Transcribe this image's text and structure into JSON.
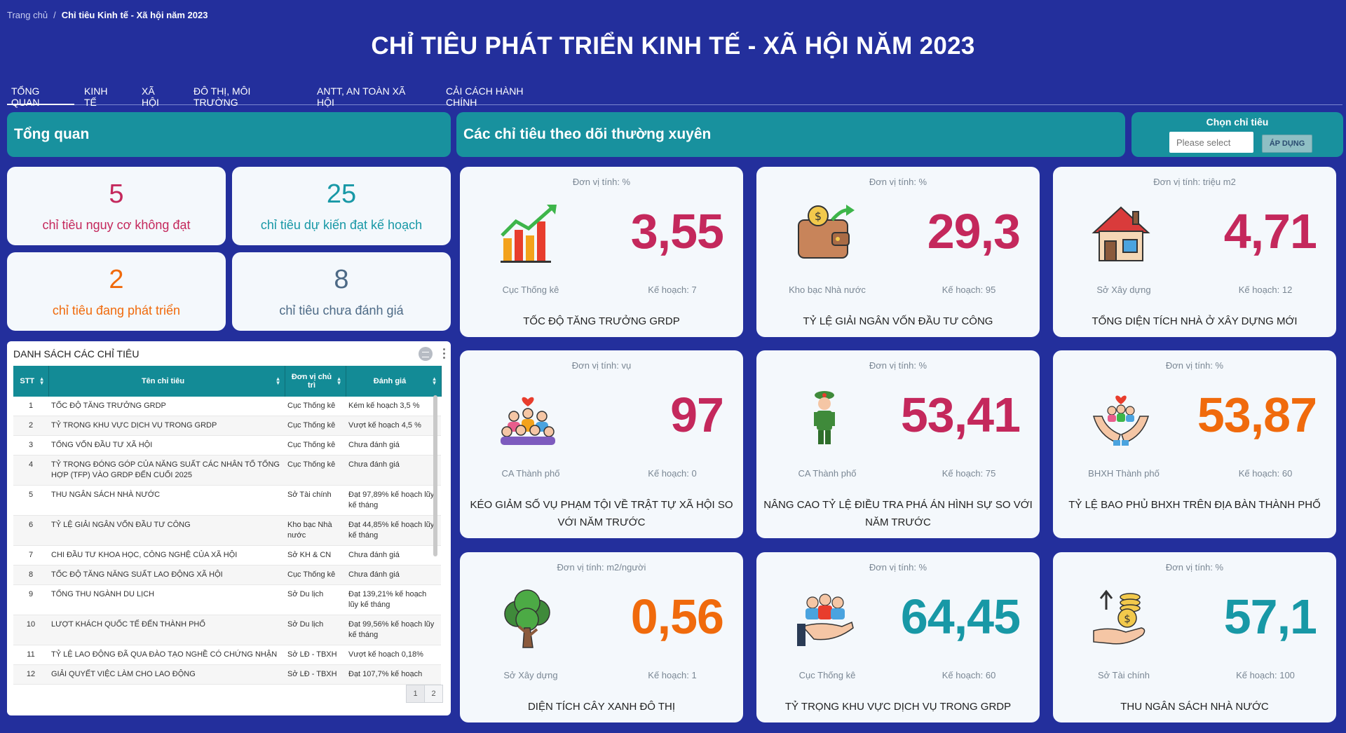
{
  "breadcrumb": {
    "home": "Trang chủ",
    "separator": "/",
    "current": "Chỉ tiêu Kinh tế - Xã hội năm 2023"
  },
  "page_title": "CHỈ TIÊU PHÁT TRIỂN KINH TẾ - XÃ HỘI NĂM 2023",
  "tabs": [
    {
      "label": "TỔNG QUAN"
    },
    {
      "label": "KINH TẾ"
    },
    {
      "label": "XÃ HỘI"
    },
    {
      "label": "ĐÔ THỊ, MÔI TRƯỜNG"
    },
    {
      "label": "ANTT, AN TOÀN XÃ HỘI"
    },
    {
      "label": "CẢI CÁCH HÀNH CHÍNH"
    }
  ],
  "overview": {
    "title": "Tổng quan"
  },
  "tracking": {
    "title": "Các chỉ tiêu theo dõi thường xuyên"
  },
  "picker": {
    "title": "Chọn chỉ tiêu",
    "placeholder": "Please select",
    "apply_label": "ÁP DỤNG"
  },
  "stats": [
    {
      "value": "5",
      "label": "chỉ tiêu nguy cơ không đạt",
      "color": "#c4285c"
    },
    {
      "value": "25",
      "label": "chỉ tiêu dự kiến đạt kế hoạch",
      "color": "#1898a6"
    },
    {
      "value": "2",
      "label": "chỉ tiêu đang phát triển",
      "color": "#f06a0c"
    },
    {
      "value": "8",
      "label": "chỉ tiêu chưa đánh giá",
      "color": "#4d6a86"
    }
  ],
  "list": {
    "title": "DANH SÁCH CÁC CHỈ TIÊU",
    "columns": [
      "STT",
      "Tên chỉ tiêu",
      "Đơn vị chủ trì",
      "Đánh giá"
    ],
    "rows": [
      {
        "stt": "1",
        "name": "TỐC ĐỘ TĂNG TRƯỞNG GRDP",
        "unit": "Cục Thống kê",
        "eval": "Kém kế hoạch 3,5 %"
      },
      {
        "stt": "2",
        "name": "TỶ TRỌNG KHU VỰC DỊCH VỤ TRONG GRDP",
        "unit": "Cục Thống kê",
        "eval": "Vượt kế hoạch 4,5 %"
      },
      {
        "stt": "3",
        "name": "TỔNG VỐN ĐẦU TƯ XÃ HỘI",
        "unit": "Cục Thống kê",
        "eval": "Chưa đánh giá"
      },
      {
        "stt": "4",
        "name": "TỶ TRỌNG ĐÓNG GÓP CỦA NĂNG SUẤT CÁC NHÂN TỐ TỔNG HỢP (TFP) VÀO GRDP ĐẾN CUỐI 2025",
        "unit": "Cục Thống kê",
        "eval": "Chưa đánh giá"
      },
      {
        "stt": "5",
        "name": "THU NGÂN SÁCH NHÀ NƯỚC",
        "unit": "Sở Tài chính",
        "eval": "Đạt 97,89% kế hoạch lũy kế tháng"
      },
      {
        "stt": "6",
        "name": "TỶ LỆ GIẢI NGÂN VỐN ĐẦU TƯ CÔNG",
        "unit": "Kho bạc Nhà nước",
        "eval": "Đạt 44,85% kế hoạch lũy kế tháng"
      },
      {
        "stt": "7",
        "name": "CHI ĐẦU TƯ KHOA HỌC, CÔNG NGHỆ CỦA XÃ HỘI",
        "unit": "Sở KH & CN",
        "eval": "Chưa đánh giá"
      },
      {
        "stt": "8",
        "name": "TỐC ĐỘ TĂNG NĂNG SUẤT LAO ĐỘNG XÃ HỘI",
        "unit": "Cục Thống kê",
        "eval": "Chưa đánh giá"
      },
      {
        "stt": "9",
        "name": "TỔNG THU NGÀNH DU LỊCH",
        "unit": "Sở Du lịch",
        "eval": "Đạt 139,21% kế hoạch lũy kế tháng"
      },
      {
        "stt": "10",
        "name": "LƯỢT KHÁCH QUỐC TẾ ĐẾN THÀNH PHỐ",
        "unit": "Sở Du lịch",
        "eval": "Đạt 99,56% kế hoạch lũy kế tháng"
      },
      {
        "stt": "11",
        "name": "TỶ LỆ LAO ĐỘNG ĐÃ QUA ĐÀO TẠO NGHỀ CÓ CHỨNG NHẬN",
        "unit": "Sở LĐ - TBXH",
        "eval": "Vượt kế hoạch 0,18%"
      },
      {
        "stt": "12",
        "name": "GIẢI QUYẾT VIỆC LÀM CHO LAO ĐỘNG",
        "unit": "Sở LĐ - TBXH",
        "eval": "Đạt 107,7% kế hoạch"
      }
    ],
    "pages": [
      "1",
      "2"
    ]
  },
  "metrics": [
    {
      "unit": "Đơn vị tính: %",
      "value": "3,55",
      "color": "#c4285c",
      "source": "Cục Thống kê",
      "plan": "Kế hoạch: 7",
      "name": "TỐC ĐỘ TĂNG TRƯỞNG GRDP",
      "icon": "growth-chart-icon"
    },
    {
      "unit": "Đơn vị tính: %",
      "value": "29,3",
      "color": "#c4285c",
      "source": "Kho bạc Nhà nước",
      "plan": "Kế hoạch: 95",
      "name": "TỶ LỆ GIẢI NGÂN VỐN ĐẦU TƯ CÔNG",
      "icon": "wallet-icon"
    },
    {
      "unit": "Đơn vị tính: triệu m2",
      "value": "4,71",
      "color": "#c4285c",
      "source": "Sở Xây dựng",
      "plan": "Kế hoạch: 12",
      "name": "TỔNG DIỆN TÍCH NHÀ Ở XÂY DỰNG MỚI",
      "icon": "house-icon"
    },
    {
      "unit": "Đơn vị tính: vụ",
      "value": "97",
      "color": "#c4285c",
      "source": "CA Thành phố",
      "plan": "Kế hoạch: 0",
      "name": "KÉO GIẢM SỐ VỤ PHẠM TỘI VỀ TRẬT TỰ XÃ HỘI SO VỚI NĂM TRƯỚC",
      "icon": "community-icon"
    },
    {
      "unit": "Đơn vị tính: %",
      "value": "53,41",
      "color": "#c4285c",
      "source": "CA Thành phố",
      "plan": "Kế hoạch: 75",
      "name": "NÂNG CAO TỶ LỆ ĐIỀU TRA PHÁ ÁN HÌNH SỰ SO VỚI NĂM TRƯỚC",
      "icon": "police-officer-icon"
    },
    {
      "unit": "Đơn vị tính: %",
      "value": "53,87",
      "color": "#f06a0c",
      "source": "BHXH Thành phố",
      "plan": "Kế hoạch: 60",
      "name": "TỶ LỆ BAO PHỦ BHXH TRÊN ĐỊA BÀN THÀNH PHỐ",
      "icon": "care-hands-icon"
    },
    {
      "unit": "Đơn vị tính: m2/người",
      "value": "0,56",
      "color": "#f06a0c",
      "source": "Sở Xây dựng",
      "plan": "Kế hoạch: 1",
      "name": "DIỆN TÍCH CÂY XANH ĐÔ THỊ",
      "icon": "tree-icon"
    },
    {
      "unit": "Đơn vị tính: %",
      "value": "64,45",
      "color": "#1898a6",
      "source": "Cục Thống kê",
      "plan": "Kế hoạch: 60",
      "name": "TỶ TRỌNG KHU VỰC DỊCH VỤ TRONG GRDP",
      "icon": "service-people-icon"
    },
    {
      "unit": "Đơn vị tính: %",
      "value": "57,1",
      "color": "#1898a6",
      "source": "Sở Tài chính",
      "plan": "Kế hoạch: 100",
      "name": "THU NGÂN SÁCH NHÀ NƯỚC",
      "icon": "money-hand-icon"
    }
  ]
}
